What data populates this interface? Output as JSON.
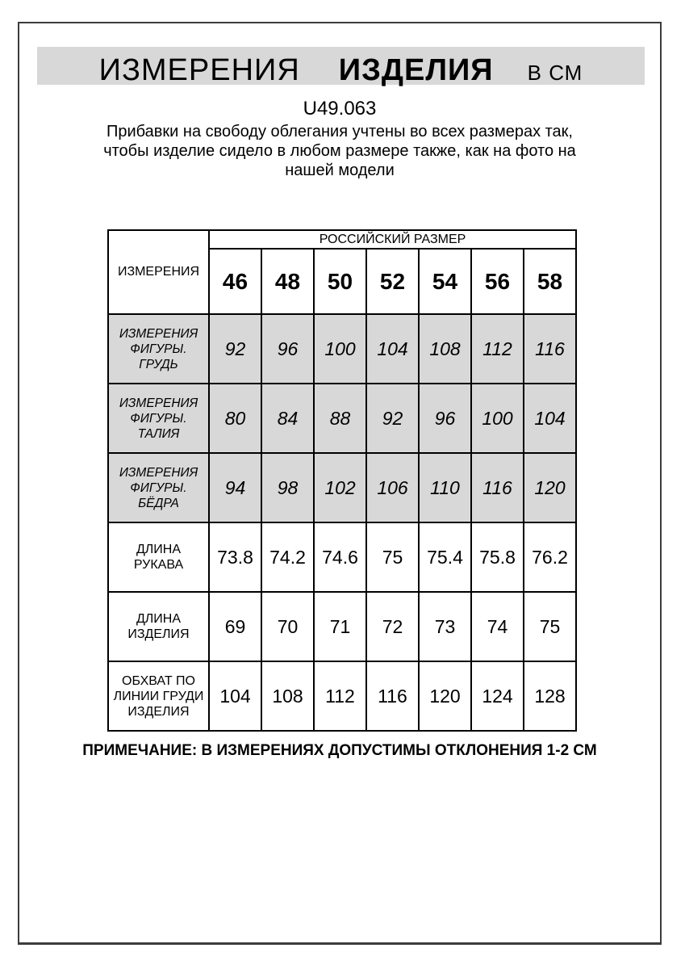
{
  "header": {
    "title_main": "ИЗМЕРЕНИЯ",
    "title_strong": "ИЗДЕЛИЯ",
    "title_units": "В СМ"
  },
  "article_code": "U49.063",
  "description_lines": [
    "Прибавки на свободу облегания учтены во всех размерах так,",
    "чтобы изделие сидело в любом размере также, как на фото на",
    "нашей модели"
  ],
  "table": {
    "corner_label": "ИЗМЕРЕНИЯ",
    "size_group_header": "РОССИЙСКИЙ РАЗМЕР",
    "sizes": [
      "46",
      "48",
      "50",
      "52",
      "54",
      "56",
      "58"
    ],
    "rows": [
      {
        "label": "ИЗМЕРЕНИЯ ФИГУРЫ. ГРУДЬ",
        "shaded": true,
        "values": [
          "92",
          "96",
          "100",
          "104",
          "108",
          "112",
          "116"
        ]
      },
      {
        "label": "ИЗМЕРЕНИЯ ФИГУРЫ. ТАЛИЯ",
        "shaded": true,
        "values": [
          "80",
          "84",
          "88",
          "92",
          "96",
          "100",
          "104"
        ]
      },
      {
        "label": "ИЗМЕРЕНИЯ ФИГУРЫ. БЁДРА",
        "shaded": true,
        "values": [
          "94",
          "98",
          "102",
          "106",
          "110",
          "116",
          "120"
        ]
      },
      {
        "label": "ДЛИНА РУКАВА",
        "shaded": false,
        "values": [
          "73.8",
          "74.2",
          "74.6",
          "75",
          "75.4",
          "75.8",
          "76.2"
        ]
      },
      {
        "label": "ДЛИНА ИЗДЕЛИЯ",
        "shaded": false,
        "values": [
          "69",
          "70",
          "71",
          "72",
          "73",
          "74",
          "75"
        ]
      },
      {
        "label": "ОБХВАТ ПО ЛИНИИ ГРУДИ ИЗДЕЛИЯ",
        "shaded": false,
        "values": [
          "104",
          "108",
          "112",
          "116",
          "120",
          "124",
          "128"
        ]
      }
    ]
  },
  "note": "ПРИМЕЧАНИЕ: В ИЗМЕРЕНИЯХ ДОПУСТИМЫ ОТКЛОНЕНИЯ 1-2 СМ",
  "colors": {
    "band_gray": "#d8d8d8",
    "shaded_row_gray": "#d8d8d8",
    "table_border": "#000000",
    "page_border": "#3c3c3c"
  }
}
